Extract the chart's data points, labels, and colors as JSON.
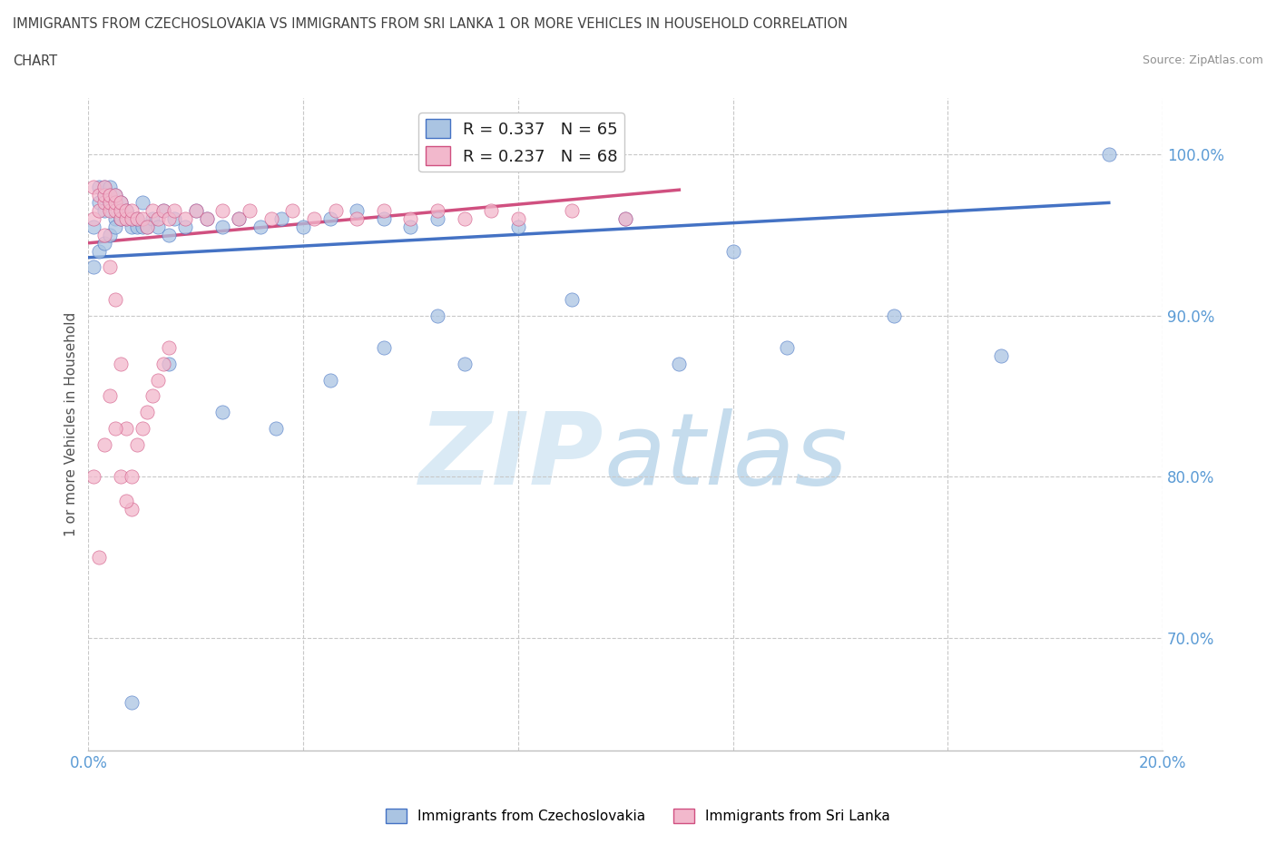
{
  "title_line1": "IMMIGRANTS FROM CZECHOSLOVAKIA VS IMMIGRANTS FROM SRI LANKA 1 OR MORE VEHICLES IN HOUSEHOLD CORRELATION",
  "title_line2": "CHART",
  "source_text": "Source: ZipAtlas.com",
  "ylabel": "1 or more Vehicles in Household",
  "xlim": [
    0.0,
    0.2
  ],
  "ylim": [
    0.63,
    1.035
  ],
  "xticks": [
    0.0,
    0.04,
    0.08,
    0.12,
    0.16,
    0.2
  ],
  "yticks": [
    0.7,
    0.8,
    0.9,
    1.0
  ],
  "ytick_labels": [
    "70.0%",
    "80.0%",
    "90.0%",
    "100.0%"
  ],
  "legend_R1": "R = 0.337",
  "legend_N1": "N = 65",
  "legend_R2": "R = 0.237",
  "legend_N2": "N = 68",
  "color_czechoslovakia": "#aac4e2",
  "color_srilanka": "#f2b8cc",
  "color_trend_czechoslovakia": "#4472c4",
  "color_trend_srilanka": "#d05080",
  "color_axis_labels": "#5b9bd5",
  "color_title": "#404040",
  "color_source": "#909090",
  "color_grid": "#c8c8c8",
  "czecho_x": [
    0.001,
    0.002,
    0.002,
    0.003,
    0.003,
    0.003,
    0.004,
    0.004,
    0.004,
    0.005,
    0.005,
    0.005,
    0.006,
    0.006,
    0.007,
    0.007,
    0.008,
    0.008,
    0.009,
    0.009,
    0.01,
    0.01,
    0.011,
    0.012,
    0.013,
    0.014,
    0.015,
    0.016,
    0.018,
    0.02,
    0.022,
    0.025,
    0.028,
    0.032,
    0.036,
    0.04,
    0.045,
    0.05,
    0.055,
    0.06,
    0.065,
    0.07,
    0.08,
    0.09,
    0.1,
    0.11,
    0.12,
    0.13,
    0.15,
    0.17,
    0.19,
    0.015,
    0.025,
    0.035,
    0.045,
    0.055,
    0.065,
    0.001,
    0.002,
    0.003,
    0.004,
    0.005,
    0.006,
    0.007,
    0.008
  ],
  "czecho_y": [
    0.955,
    0.97,
    0.98,
    0.965,
    0.975,
    0.98,
    0.97,
    0.975,
    0.98,
    0.97,
    0.975,
    0.96,
    0.965,
    0.97,
    0.96,
    0.965,
    0.955,
    0.96,
    0.955,
    0.96,
    0.955,
    0.97,
    0.955,
    0.96,
    0.955,
    0.965,
    0.95,
    0.96,
    0.955,
    0.965,
    0.96,
    0.955,
    0.96,
    0.955,
    0.96,
    0.955,
    0.96,
    0.965,
    0.96,
    0.955,
    0.96,
    0.87,
    0.955,
    0.91,
    0.96,
    0.87,
    0.94,
    0.88,
    0.9,
    0.875,
    1.0,
    0.87,
    0.84,
    0.83,
    0.86,
    0.88,
    0.9,
    0.93,
    0.94,
    0.945,
    0.95,
    0.955,
    0.96,
    0.965,
    0.66
  ],
  "srilanka_x": [
    0.001,
    0.001,
    0.002,
    0.002,
    0.003,
    0.003,
    0.003,
    0.004,
    0.004,
    0.004,
    0.005,
    0.005,
    0.005,
    0.006,
    0.006,
    0.006,
    0.007,
    0.007,
    0.008,
    0.008,
    0.009,
    0.01,
    0.011,
    0.012,
    0.013,
    0.014,
    0.015,
    0.016,
    0.018,
    0.02,
    0.022,
    0.025,
    0.028,
    0.03,
    0.034,
    0.038,
    0.042,
    0.046,
    0.05,
    0.055,
    0.06,
    0.065,
    0.07,
    0.075,
    0.08,
    0.09,
    0.1,
    0.003,
    0.004,
    0.005,
    0.006,
    0.007,
    0.008,
    0.001,
    0.002,
    0.003,
    0.004,
    0.005,
    0.006,
    0.007,
    0.008,
    0.009,
    0.01,
    0.011,
    0.012,
    0.013,
    0.014,
    0.015
  ],
  "srilanka_y": [
    0.96,
    0.98,
    0.965,
    0.975,
    0.97,
    0.975,
    0.98,
    0.965,
    0.97,
    0.975,
    0.965,
    0.97,
    0.975,
    0.96,
    0.965,
    0.97,
    0.96,
    0.965,
    0.96,
    0.965,
    0.96,
    0.96,
    0.955,
    0.965,
    0.96,
    0.965,
    0.96,
    0.965,
    0.96,
    0.965,
    0.96,
    0.965,
    0.96,
    0.965,
    0.96,
    0.965,
    0.96,
    0.965,
    0.96,
    0.965,
    0.96,
    0.965,
    0.96,
    0.965,
    0.96,
    0.965,
    0.96,
    0.95,
    0.93,
    0.91,
    0.87,
    0.83,
    0.78,
    0.8,
    0.75,
    0.82,
    0.85,
    0.83,
    0.8,
    0.785,
    0.8,
    0.82,
    0.83,
    0.84,
    0.85,
    0.86,
    0.87,
    0.88
  ],
  "trend_czecho_x0": 0.0,
  "trend_czecho_y0": 0.936,
  "trend_czecho_x1": 0.19,
  "trend_czecho_y1": 0.97,
  "trend_srilanka_x0": 0.0,
  "trend_srilanka_y0": 0.945,
  "trend_srilanka_x1": 0.11,
  "trend_srilanka_y1": 0.978
}
